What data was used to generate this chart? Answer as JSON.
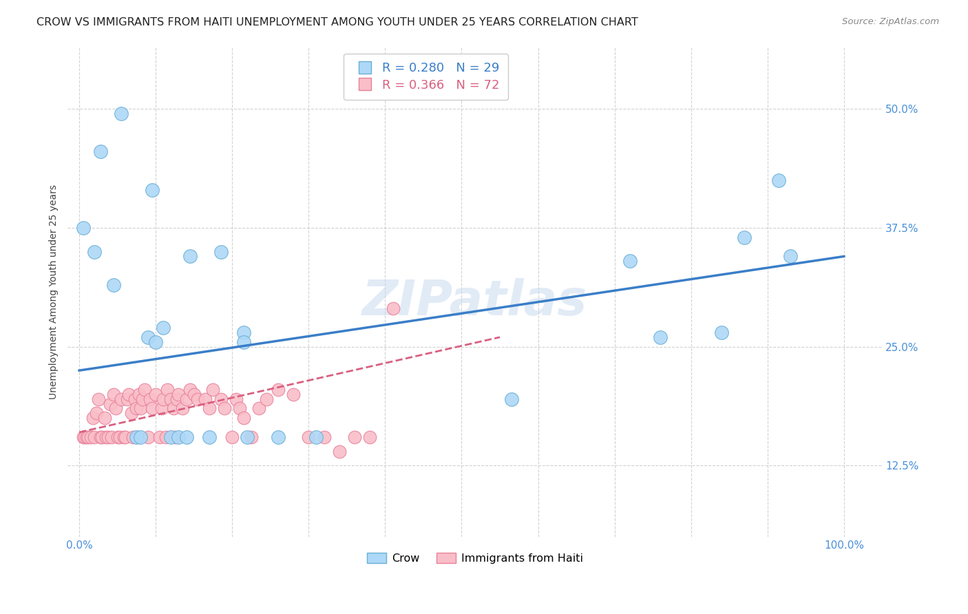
{
  "title": "CROW VS IMMIGRANTS FROM HAITI UNEMPLOYMENT AMONG YOUTH UNDER 25 YEARS CORRELATION CHART",
  "source": "Source: ZipAtlas.com",
  "ylabel": "Unemployment Among Youth under 25 years",
  "ytick_labels": [
    "12.5%",
    "25.0%",
    "37.5%",
    "50.0%"
  ],
  "ytick_vals": [
    0.125,
    0.25,
    0.375,
    0.5
  ],
  "legend_blue_R": "R = 0.280",
  "legend_blue_N": "N = 29",
  "legend_pink_R": "R = 0.366",
  "legend_pink_N": "N = 72",
  "legend_label_blue": "Crow",
  "legend_label_pink": "Immigrants from Haiti",
  "blue_color": "#ADD8F7",
  "pink_color": "#F9BEC8",
  "blue_edge_color": "#6AAED6",
  "pink_edge_color": "#E8809A",
  "blue_line_color": "#3A7EC8",
  "pink_line_color": "#D96080",
  "watermark": "ZIPatlas",
  "blue_x": [
    0.028,
    0.055,
    0.095,
    0.145,
    0.185,
    0.215,
    0.215,
    0.005,
    0.02,
    0.045,
    0.075,
    0.08,
    0.09,
    0.1,
    0.11,
    0.12,
    0.13,
    0.14,
    0.17,
    0.22,
    0.26,
    0.31,
    0.565,
    0.72,
    0.76,
    0.84,
    0.87,
    0.915,
    0.93
  ],
  "blue_y": [
    0.455,
    0.495,
    0.415,
    0.345,
    0.35,
    0.265,
    0.255,
    0.375,
    0.35,
    0.315,
    0.155,
    0.155,
    0.26,
    0.255,
    0.27,
    0.155,
    0.155,
    0.155,
    0.155,
    0.155,
    0.155,
    0.155,
    0.195,
    0.34,
    0.26,
    0.265,
    0.365,
    0.425,
    0.345
  ],
  "pink_x": [
    0.005,
    0.007,
    0.01,
    0.012,
    0.015,
    0.018,
    0.02,
    0.022,
    0.025,
    0.028,
    0.03,
    0.033,
    0.035,
    0.038,
    0.04,
    0.042,
    0.045,
    0.048,
    0.05,
    0.053,
    0.055,
    0.058,
    0.06,
    0.063,
    0.065,
    0.068,
    0.07,
    0.073,
    0.075,
    0.078,
    0.08,
    0.083,
    0.085,
    0.09,
    0.093,
    0.095,
    0.1,
    0.105,
    0.108,
    0.11,
    0.113,
    0.115,
    0.12,
    0.123,
    0.125,
    0.128,
    0.13,
    0.135,
    0.14,
    0.145,
    0.15,
    0.155,
    0.165,
    0.17,
    0.175,
    0.185,
    0.19,
    0.2,
    0.205,
    0.21,
    0.215,
    0.225,
    0.235,
    0.245,
    0.26,
    0.28,
    0.3,
    0.32,
    0.34,
    0.36,
    0.38,
    0.41
  ],
  "pink_y": [
    0.155,
    0.155,
    0.155,
    0.155,
    0.155,
    0.175,
    0.155,
    0.18,
    0.195,
    0.155,
    0.155,
    0.175,
    0.155,
    0.155,
    0.19,
    0.155,
    0.2,
    0.185,
    0.155,
    0.155,
    0.195,
    0.155,
    0.155,
    0.195,
    0.2,
    0.18,
    0.155,
    0.195,
    0.185,
    0.2,
    0.185,
    0.195,
    0.205,
    0.155,
    0.195,
    0.185,
    0.2,
    0.155,
    0.185,
    0.195,
    0.155,
    0.205,
    0.195,
    0.185,
    0.155,
    0.195,
    0.2,
    0.185,
    0.195,
    0.205,
    0.2,
    0.195,
    0.195,
    0.185,
    0.205,
    0.195,
    0.185,
    0.155,
    0.195,
    0.185,
    0.175,
    0.155,
    0.185,
    0.195,
    0.205,
    0.2,
    0.155,
    0.155,
    0.14,
    0.155,
    0.155,
    0.29
  ],
  "blue_line_x0": 0.0,
  "blue_line_x1": 1.0,
  "blue_line_y0": 0.225,
  "blue_line_y1": 0.345,
  "pink_line_x0": 0.0,
  "pink_line_x1": 0.55,
  "pink_line_y0": 0.16,
  "pink_line_y1": 0.26,
  "xlim": [
    -0.015,
    1.05
  ],
  "ylim": [
    0.05,
    0.565
  ]
}
